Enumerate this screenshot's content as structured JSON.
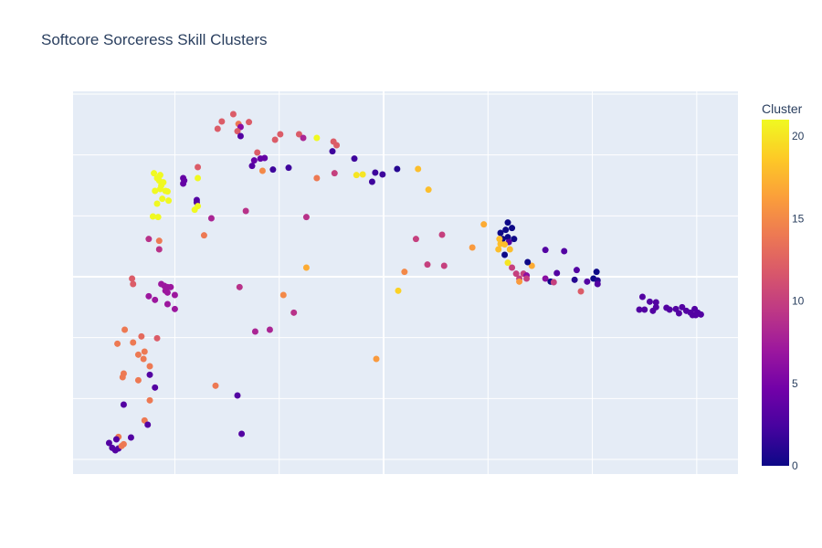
{
  "chart_data": {
    "type": "scatter",
    "title": "Softcore Sorceress Skill Clusters",
    "xlabel": "",
    "ylabel": "",
    "xlim": [
      -29.75,
      33.95
    ],
    "ylim": [
      -32.4,
      30.45
    ],
    "grid": true,
    "x_gridlines": [
      -20,
      -10,
      0,
      10,
      20,
      30
    ],
    "y_gridlines": [
      -30,
      -20,
      -10,
      0,
      10,
      20,
      30
    ],
    "tick_labels_shown": false,
    "colorscale": "plasma",
    "colorbar": {
      "title": "Cluster",
      "range": [
        0,
        21
      ],
      "ticks": [
        0,
        5,
        10,
        15,
        20
      ],
      "placement": "right"
    },
    "point_fields": [
      "x",
      "y",
      "cluster"
    ],
    "points": [
      [
        -14.4,
        26.7,
        12
      ],
      [
        -15.5,
        25.5,
        12
      ],
      [
        -15.9,
        24.3,
        12
      ],
      [
        -13.9,
        25.1,
        14
      ],
      [
        -13.7,
        24.6,
        6
      ],
      [
        -12.9,
        25.4,
        12
      ],
      [
        -14.0,
        23.9,
        12
      ],
      [
        -13.7,
        23.1,
        3
      ],
      [
        -10.4,
        22.5,
        12
      ],
      [
        -9.9,
        23.4,
        12
      ],
      [
        -8.1,
        23.4,
        12
      ],
      [
        -7.7,
        22.8,
        8
      ],
      [
        -6.4,
        22.8,
        21
      ],
      [
        -4.8,
        22.2,
        12
      ],
      [
        -4.5,
        21.6,
        12
      ],
      [
        -4.9,
        20.6,
        2
      ],
      [
        -12.1,
        20.4,
        12
      ],
      [
        -12.4,
        19.1,
        4
      ],
      [
        -11.8,
        19.4,
        4
      ],
      [
        -11.4,
        19.5,
        4
      ],
      [
        -12.6,
        18.2,
        3
      ],
      [
        -11.6,
        17.4,
        15
      ],
      [
        -10.6,
        17.6,
        2
      ],
      [
        -9.1,
        17.9,
        2
      ],
      [
        -6.4,
        16.2,
        14
      ],
      [
        -4.7,
        17.0,
        10
      ],
      [
        -2.8,
        19.4,
        2
      ],
      [
        -2.6,
        16.7,
        20
      ],
      [
        -2.0,
        16.8,
        20
      ],
      [
        -0.8,
        17.1,
        2
      ],
      [
        -0.1,
        16.8,
        2
      ],
      [
        -1.1,
        15.6,
        2
      ],
      [
        1.3,
        17.7,
        1
      ],
      [
        -22.0,
        17.0,
        21
      ],
      [
        -21.7,
        16.2,
        21
      ],
      [
        -21.4,
        16.7,
        21
      ],
      [
        -21.5,
        15.8,
        21
      ],
      [
        -21.3,
        15.0,
        21
      ],
      [
        -21.1,
        15.5,
        21
      ],
      [
        -21.9,
        14.1,
        21
      ],
      [
        -21.4,
        14.4,
        21
      ],
      [
        -20.9,
        14.1,
        21
      ],
      [
        -20.7,
        14.0,
        21
      ],
      [
        -21.2,
        12.8,
        21
      ],
      [
        -20.6,
        12.5,
        21
      ],
      [
        -21.7,
        12.0,
        21
      ],
      [
        -22.1,
        9.9,
        21
      ],
      [
        -21.6,
        9.8,
        21
      ],
      [
        -19.2,
        16.2,
        4
      ],
      [
        -19.1,
        15.8,
        4
      ],
      [
        -19.2,
        15.3,
        4
      ],
      [
        -17.8,
        18.0,
        12
      ],
      [
        -17.8,
        16.2,
        21
      ],
      [
        -17.9,
        12.6,
        3
      ],
      [
        -17.9,
        12.2,
        3
      ],
      [
        -17.8,
        11.6,
        21
      ],
      [
        -18.1,
        11.0,
        21
      ],
      [
        -16.5,
        9.6,
        8
      ],
      [
        -13.2,
        10.8,
        9
      ],
      [
        -7.4,
        9.8,
        9
      ],
      [
        -17.2,
        6.8,
        14
      ],
      [
        -22.5,
        6.2,
        9
      ],
      [
        -21.5,
        5.9,
        14
      ],
      [
        -21.5,
        4.5,
        9
      ],
      [
        -7.4,
        1.5,
        17
      ],
      [
        -24.1,
        -0.3,
        12
      ],
      [
        -24.0,
        -1.2,
        12
      ],
      [
        -21.3,
        -1.2,
        7
      ],
      [
        -21.0,
        -1.5,
        7
      ],
      [
        -20.7,
        -1.7,
        7
      ],
      [
        -20.4,
        -1.7,
        7
      ],
      [
        -20.9,
        -2.3,
        7
      ],
      [
        -20.7,
        -2.6,
        7
      ],
      [
        -20.0,
        -3.0,
        7
      ],
      [
        -22.5,
        -3.2,
        7
      ],
      [
        -21.9,
        -3.8,
        7
      ],
      [
        -20.7,
        -4.5,
        7
      ],
      [
        -20.0,
        -5.3,
        7
      ],
      [
        -13.8,
        -1.7,
        9
      ],
      [
        -9.6,
        -3.0,
        15
      ],
      [
        -8.6,
        -5.9,
        9
      ],
      [
        -24.8,
        -8.7,
        14
      ],
      [
        -23.2,
        -9.8,
        13
      ],
      [
        -21.7,
        -10.1,
        12
      ],
      [
        -25.5,
        -11.0,
        14
      ],
      [
        -24.0,
        -10.8,
        14
      ],
      [
        -22.9,
        -12.3,
        14
      ],
      [
        -23.5,
        -12.8,
        14
      ],
      [
        -23.0,
        -13.5,
        14
      ],
      [
        -22.4,
        -14.7,
        14
      ],
      [
        -24.9,
        -15.9,
        14
      ],
      [
        -25.0,
        -16.5,
        14
      ],
      [
        -22.4,
        -16.1,
        3
      ],
      [
        -23.5,
        -17.0,
        14
      ],
      [
        -21.9,
        -18.2,
        3
      ],
      [
        -24.9,
        -21.0,
        3
      ],
      [
        -22.4,
        -20.3,
        14
      ],
      [
        -22.9,
        -23.6,
        14
      ],
      [
        -22.6,
        -24.3,
        3
      ],
      [
        -25.4,
        -26.3,
        14
      ],
      [
        -24.2,
        -26.4,
        3
      ],
      [
        -25.6,
        -26.7,
        3
      ],
      [
        -26.3,
        -27.3,
        3
      ],
      [
        -26.0,
        -28.1,
        3
      ],
      [
        -25.7,
        -28.5,
        3
      ],
      [
        -25.4,
        -28.2,
        3
      ],
      [
        -25.1,
        -27.8,
        14
      ],
      [
        -24.9,
        -27.5,
        14
      ],
      [
        -12.3,
        -9.0,
        8
      ],
      [
        -10.9,
        -8.7,
        8
      ],
      [
        -16.1,
        -17.9,
        14
      ],
      [
        -14.0,
        -19.5,
        3
      ],
      [
        -13.6,
        -25.8,
        3
      ],
      [
        -0.7,
        -13.5,
        16
      ],
      [
        1.4,
        -2.3,
        19
      ],
      [
        3.3,
        17.7,
        18
      ],
      [
        4.3,
        14.3,
        18
      ],
      [
        9.6,
        8.6,
        17
      ],
      [
        8.5,
        4.8,
        16
      ],
      [
        2.0,
        0.8,
        15
      ],
      [
        3.1,
        6.2,
        10
      ],
      [
        5.6,
        6.9,
        10
      ],
      [
        4.2,
        2.0,
        10
      ],
      [
        5.8,
        1.8,
        10
      ],
      [
        11.9,
        8.9,
        0
      ],
      [
        12.3,
        8.0,
        0
      ],
      [
        11.2,
        7.2,
        0
      ],
      [
        11.7,
        7.7,
        0
      ],
      [
        11.9,
        6.5,
        0
      ],
      [
        12.5,
        6.2,
        0
      ],
      [
        11.4,
        6.2,
        0
      ],
      [
        12.0,
        5.7,
        3
      ],
      [
        11.1,
        6.2,
        18
      ],
      [
        11.2,
        5.4,
        18
      ],
      [
        11.6,
        5.3,
        18
      ],
      [
        12.1,
        4.5,
        18
      ],
      [
        11.0,
        4.5,
        18
      ],
      [
        11.6,
        3.6,
        0
      ],
      [
        11.9,
        2.3,
        20
      ],
      [
        14.2,
        1.8,
        17
      ],
      [
        13.8,
        2.4,
        0
      ],
      [
        12.3,
        1.5,
        10
      ],
      [
        12.7,
        0.5,
        10
      ],
      [
        13.4,
        0.5,
        10
      ],
      [
        13.7,
        0.2,
        6
      ],
      [
        13.0,
        -0.3,
        10
      ],
      [
        13.0,
        -0.8,
        16
      ],
      [
        13.7,
        -0.3,
        10
      ],
      [
        15.5,
        4.4,
        3
      ],
      [
        17.3,
        4.2,
        3
      ],
      [
        16.6,
        0.6,
        3
      ],
      [
        15.5,
        -0.3,
        6
      ],
      [
        16.0,
        -0.8,
        0
      ],
      [
        16.3,
        -0.9,
        10
      ],
      [
        18.5,
        1.1,
        3
      ],
      [
        18.3,
        -0.5,
        1
      ],
      [
        19.5,
        -0.8,
        3
      ],
      [
        20.4,
        0.8,
        0
      ],
      [
        20.1,
        -0.3,
        0
      ],
      [
        20.5,
        -0.6,
        1
      ],
      [
        20.5,
        -1.2,
        3
      ],
      [
        18.9,
        -2.4,
        12
      ],
      [
        24.8,
        -3.3,
        3
      ],
      [
        25.5,
        -4.1,
        3
      ],
      [
        26.1,
        -4.2,
        3
      ],
      [
        24.5,
        -5.4,
        3
      ],
      [
        25.0,
        -5.4,
        3
      ],
      [
        25.8,
        -5.6,
        3
      ],
      [
        26.1,
        -5.0,
        3
      ],
      [
        27.1,
        -5.1,
        3
      ],
      [
        27.4,
        -5.4,
        3
      ],
      [
        28.0,
        -5.3,
        3
      ],
      [
        28.3,
        -6.0,
        3
      ],
      [
        28.6,
        -5.0,
        3
      ],
      [
        29.0,
        -5.6,
        3
      ],
      [
        29.4,
        -5.9,
        3
      ],
      [
        29.8,
        -5.3,
        3
      ],
      [
        30.1,
        -5.9,
        3
      ],
      [
        30.4,
        -6.2,
        3
      ],
      [
        29.6,
        -6.3,
        3
      ],
      [
        29.9,
        -6.3,
        3
      ]
    ]
  },
  "colors": {
    "plot_bg": "#e5ecf6",
    "grid": "#ffffff",
    "text": "#2a3f5f"
  }
}
